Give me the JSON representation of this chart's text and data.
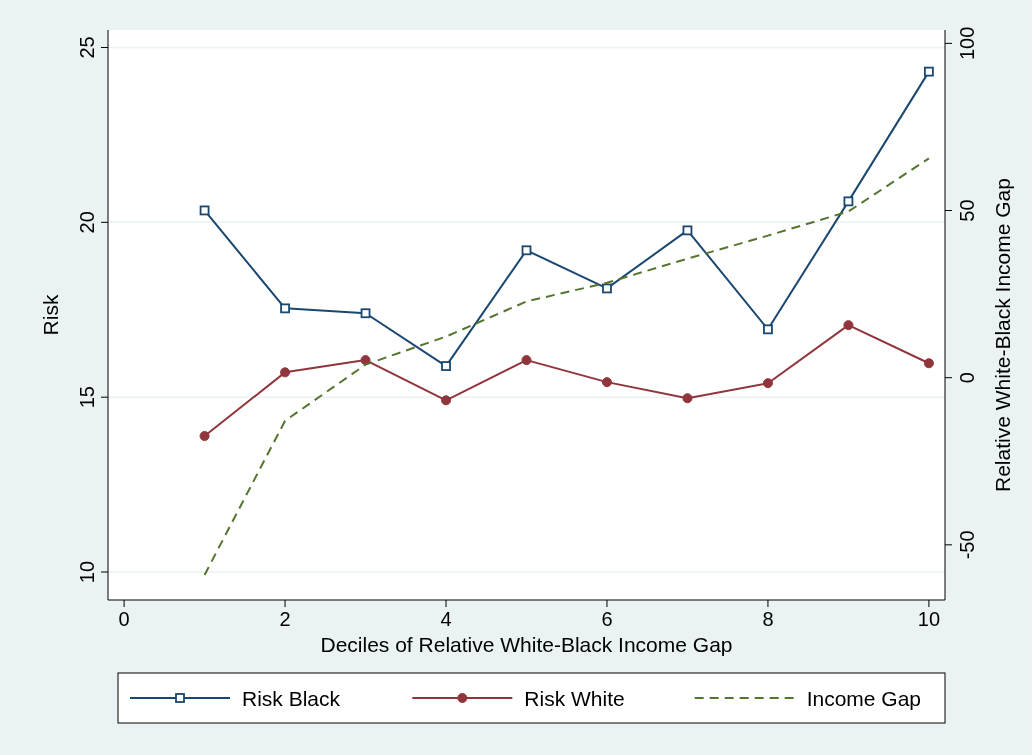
{
  "chart_data": {
    "type": "line",
    "xlabel": "Deciles of Relative White-Black Income Gap",
    "ylabel": "Risk",
    "y2label": "Relative White-Black Income Gap",
    "x": [
      1,
      2,
      3,
      4,
      5,
      6,
      7,
      8,
      9,
      10
    ],
    "xlim": [
      -0.2,
      10.2
    ],
    "xticks": [
      0,
      2,
      4,
      6,
      8,
      10
    ],
    "ylim": [
      9.2,
      25.5
    ],
    "yticks": [
      10,
      15,
      20,
      25
    ],
    "y2lim": [
      -66.5,
      104
    ],
    "y2ticks": [
      -50,
      0,
      50,
      100
    ],
    "grid": "y",
    "legend": "bottom",
    "series": [
      {
        "name": "Risk Black",
        "color": "#1a476f",
        "marker": "square",
        "line_style": "solid",
        "values": [
          20.34,
          17.54,
          17.4,
          15.89,
          19.2,
          18.11,
          19.77,
          16.94,
          20.6,
          24.31
        ]
      },
      {
        "name": "Risk White",
        "color": "#90353b",
        "marker": "circle",
        "line_style": "solid",
        "values": [
          13.89,
          15.71,
          16.06,
          14.91,
          16.06,
          15.43,
          14.97,
          15.4,
          17.06,
          15.97
        ]
      },
      {
        "name": "Income Gap",
        "color": "#55752f",
        "marker": "none",
        "line_style": "dashed",
        "axis": "y2",
        "values": [
          -59,
          -12.9,
          3.9,
          12.3,
          22.8,
          28.4,
          35.6,
          42.5,
          49.7,
          65.6
        ]
      }
    ]
  }
}
